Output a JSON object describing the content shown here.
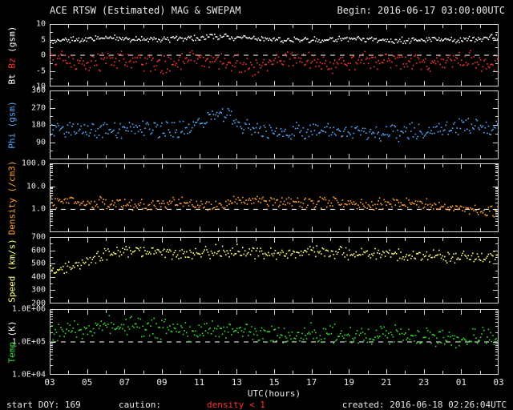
{
  "colors": {
    "background": "#000000",
    "foreground": "#ffffff",
    "axis": "#d8d8d8",
    "caution_red": "#ff3333"
  },
  "header": {
    "title": "ACE RTSW (Estimated) MAG & SWEPAM",
    "begin": "Begin: 2016-06-17 03:00:00UTC"
  },
  "footer": {
    "start_doy": "start DOY: 169",
    "caution_label": "caution:",
    "caution_value": "density < 1",
    "created": "created: 2016-06-18 02:26:04UTC"
  },
  "chart_data": {
    "type": "scatter",
    "title": "ACE RTSW (Estimated) MAG & SWEPAM",
    "x_label": "UTC(hours)",
    "x_min": 3,
    "x_max": 27,
    "x_tick_hours": [
      3,
      5,
      7,
      9,
      11,
      13,
      15,
      17,
      19,
      21,
      23,
      25,
      27
    ],
    "x_tick_labels": [
      "03",
      "05",
      "07",
      "09",
      "11",
      "13",
      "15",
      "17",
      "19",
      "21",
      "23",
      "01",
      "03"
    ],
    "x_hours": [
      3,
      4,
      5,
      6,
      7,
      8,
      9,
      10,
      11,
      12,
      13,
      14,
      15,
      16,
      17,
      18,
      19,
      20,
      21,
      22,
      23,
      24,
      25,
      26,
      27
    ],
    "panels": [
      {
        "name": "bt-bz",
        "scale": "linear",
        "ymin": -10,
        "ymax": 10,
        "y_minor_step": 2.5,
        "yticks": [
          {
            "value": 10,
            "label": "10"
          },
          {
            "value": 5,
            "label": "5"
          },
          {
            "value": 0,
            "label": "0"
          },
          {
            "value": -5,
            "label": "-5"
          },
          {
            "value": -10,
            "label": "-10"
          }
        ],
        "dashed_line_at": 0,
        "ylabel_parts": [
          {
            "text": "Bt ",
            "color": "#ffffff"
          },
          {
            "text": "Bz",
            "color": "#ff3333"
          },
          {
            "text": " (gsm)",
            "color": "#ffffff"
          }
        ],
        "series": [
          {
            "name": "Bt",
            "color": "#ffffff",
            "noise": 0.5,
            "values": [
              4.5,
              4.8,
              5.2,
              5.4,
              5.3,
              5.1,
              5.0,
              5.3,
              5.8,
              6.0,
              5.6,
              5.3,
              5.1,
              5.0,
              4.9,
              5.0,
              5.2,
              5.0,
              4.8,
              4.7,
              4.9,
              5.1,
              5.0,
              5.3,
              6.0
            ]
          },
          {
            "name": "Bz",
            "color": "#ff3333",
            "noise": 1.5,
            "values": [
              -0.5,
              -1.5,
              -3.0,
              -2.0,
              -1.0,
              -2.5,
              -3.5,
              -2.0,
              -1.0,
              -2.0,
              -3.0,
              -3.5,
              -2.5,
              -1.5,
              -2.0,
              -3.0,
              -2.5,
              -1.5,
              -1.0,
              -2.0,
              -2.8,
              -2.0,
              -1.2,
              -2.2,
              -3.0
            ]
          }
        ]
      },
      {
        "name": "phi",
        "scale": "linear",
        "ymin": 0,
        "ymax": 360,
        "y_minor_step": 45,
        "yticks": [
          {
            "value": 360,
            "label": "360"
          },
          {
            "value": 270,
            "label": "270"
          },
          {
            "value": 180,
            "label": "180"
          },
          {
            "value": 90,
            "label": "90"
          }
        ],
        "ylabel_parts": [
          {
            "text": "Phi (gsm)",
            "color": "#55aaff"
          }
        ],
        "series": [
          {
            "name": "Phi",
            "color": "#55aaff",
            "noise": 25,
            "values": [
              150,
              160,
              150,
              145,
              150,
              160,
              155,
              150,
              180,
              260,
              200,
              160,
              150,
              145,
              150,
              160,
              150,
              140,
              135,
              145,
              150,
              155,
              160,
              170,
              160
            ]
          }
        ]
      },
      {
        "name": "density",
        "scale": "log",
        "ymin": 0.1,
        "ymax": 100,
        "yticks": [
          {
            "value": 100,
            "label": "100.0"
          },
          {
            "value": 10,
            "label": "10.0"
          },
          {
            "value": 1,
            "label": "1.0"
          }
        ],
        "dashed_line_at": 1,
        "ylabel_parts": [
          {
            "text": "Density (/cm3)",
            "color": "#ffa033"
          }
        ],
        "series": [
          {
            "name": "Density",
            "color": "#ffa033",
            "noise_dec": 0.13,
            "values": [
              2.2,
              2.0,
              1.8,
              2.0,
              1.6,
              1.4,
              1.8,
              2.0,
              1.5,
              1.3,
              2.2,
              2.6,
              2.0,
              1.8,
              2.0,
              2.2,
              1.8,
              1.6,
              1.8,
              2.0,
              1.6,
              1.3,
              1.1,
              0.9,
              0.8
            ]
          }
        ]
      },
      {
        "name": "speed",
        "scale": "linear",
        "ymin": 200,
        "ymax": 700,
        "y_minor_step": 50,
        "yticks": [
          {
            "value": 700,
            "label": "700"
          },
          {
            "value": 600,
            "label": "600"
          },
          {
            "value": 500,
            "label": "500"
          },
          {
            "value": 400,
            "label": "400"
          },
          {
            "value": 300,
            "label": "300"
          },
          {
            "value": 200,
            "label": "200"
          }
        ],
        "ylabel_parts": [
          {
            "text": "Speed (km/s)",
            "color": "#ffff77"
          }
        ],
        "series": [
          {
            "name": "Speed",
            "color": "#ffff77",
            "noise": 25,
            "values": [
              470,
              480,
              520,
              570,
              600,
              595,
              580,
              565,
              575,
              595,
              600,
              585,
              575,
              580,
              590,
              585,
              575,
              570,
              575,
              570,
              560,
              555,
              550,
              548,
              555
            ]
          }
        ]
      },
      {
        "name": "temp",
        "scale": "log",
        "ymin": 10000,
        "ymax": 1000000,
        "yticks": [
          {
            "value": 1000000,
            "label": "1.0E+06"
          },
          {
            "value": 100000,
            "label": "1.0E+05"
          },
          {
            "value": 10000,
            "label": "1.0E+04"
          }
        ],
        "dashed_line_at": 100000,
        "ylabel_parts": [
          {
            "text": "Temp",
            "color": "#33dd33"
          },
          {
            "text": " (K)",
            "color": "#ffffff"
          }
        ],
        "series": [
          {
            "name": "Temp",
            "color": "#33dd33",
            "noise_dec": 0.16,
            "values": [
              200000,
              220000,
              260000,
              300000,
              320000,
              300000,
              260000,
              230000,
              210000,
              250000,
              230000,
              200000,
              180000,
              170000,
              180000,
              170000,
              160000,
              150000,
              155000,
              160000,
              145000,
              135000,
              125000,
              130000,
              140000
            ]
          }
        ]
      }
    ]
  }
}
